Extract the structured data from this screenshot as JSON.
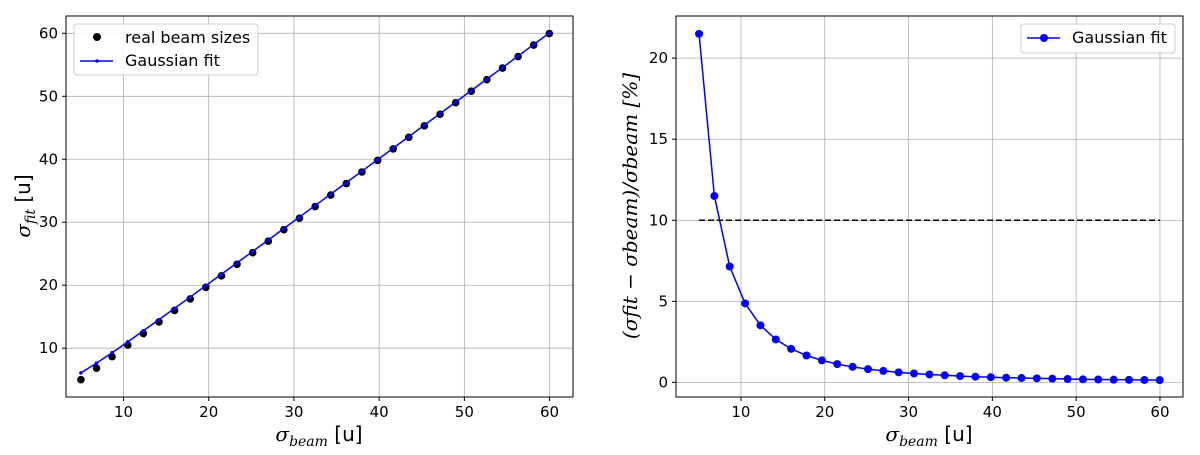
{
  "chart_data": [
    {
      "type": "scatter",
      "xlabel": {
        "symbol": "σ",
        "sub": "beam",
        "unit": " [u]"
      },
      "ylabel": {
        "symbol": "σ",
        "sub": "fit",
        "unit": " [u]"
      },
      "xlim": [
        3.25,
        62.75
      ],
      "ylim": [
        2.25,
        62.75
      ],
      "xticks": [
        10,
        20,
        30,
        40,
        50,
        60
      ],
      "yticks": [
        10,
        20,
        30,
        40,
        50,
        60
      ],
      "grid": true,
      "legend": {
        "position": "upper-left"
      },
      "series": [
        {
          "name": "real beam sizes",
          "style": "points",
          "color": "#000000",
          "x": [
            5.0,
            6.83,
            8.66,
            10.5,
            12.33,
            14.16,
            15.99,
            17.83,
            19.66,
            21.49,
            23.32,
            25.16,
            26.99,
            28.82,
            30.65,
            32.49,
            34.32,
            36.15,
            37.98,
            39.82,
            41.65,
            43.48,
            45.31,
            47.15,
            48.98,
            50.81,
            52.64,
            54.48,
            56.31,
            58.14,
            59.97
          ],
          "y": [
            5.0,
            6.83,
            8.66,
            10.5,
            12.33,
            14.16,
            15.99,
            17.83,
            19.66,
            21.49,
            23.32,
            25.16,
            26.99,
            28.82,
            30.65,
            32.49,
            34.32,
            36.15,
            37.98,
            39.82,
            41.65,
            43.48,
            45.31,
            47.15,
            48.98,
            50.81,
            52.64,
            54.48,
            56.31,
            58.14,
            59.97
          ]
        },
        {
          "name": "Gaussian fit",
          "style": "line-small-markers",
          "color": "#0000ff",
          "x": [
            5.0,
            6.83,
            8.66,
            10.5,
            12.33,
            14.16,
            15.99,
            17.83,
            19.66,
            21.49,
            23.32,
            25.16,
            26.99,
            28.82,
            30.65,
            32.49,
            34.32,
            36.15,
            37.98,
            39.82,
            41.65,
            43.48,
            45.31,
            47.15,
            48.98,
            50.81,
            52.64,
            54.48,
            56.31,
            58.14,
            59.97
          ],
          "y": [
            6.08,
            7.62,
            9.28,
            11.01,
            12.77,
            14.53,
            16.32,
            18.12,
            19.93,
            21.74,
            23.55,
            25.37,
            27.18,
            29.0,
            30.82,
            32.65,
            34.47,
            36.29,
            38.11,
            39.94,
            41.77,
            43.59,
            45.42,
            47.25,
            49.08,
            50.9,
            52.73,
            54.56,
            56.39,
            58.22,
            60.05
          ]
        }
      ]
    },
    {
      "type": "line",
      "xlabel": {
        "symbol": "σ",
        "sub": "beam",
        "unit": " [u]"
      },
      "ylabel": {
        "text": "(σfit − σbeam)/σbeam [%]"
      },
      "xlim": [
        2.25,
        62.75
      ],
      "ylim": [
        -0.9,
        22.6
      ],
      "xticks": [
        10,
        20,
        30,
        40,
        50,
        60
      ],
      "yticks": [
        0,
        5,
        10,
        15,
        20
      ],
      "grid": true,
      "legend": {
        "position": "upper-right"
      },
      "series": [
        {
          "name": "Gaussian fit",
          "style": "line-markers",
          "color": "#0000ff",
          "x": [
            5.0,
            6.83,
            8.66,
            10.5,
            12.33,
            14.16,
            15.99,
            17.83,
            19.66,
            21.49,
            23.32,
            25.16,
            26.99,
            28.82,
            30.65,
            32.49,
            34.32,
            36.15,
            37.98,
            39.82,
            41.65,
            43.48,
            45.31,
            47.15,
            48.98,
            50.81,
            52.64,
            54.48,
            56.31,
            58.14,
            59.97
          ],
          "y": [
            21.5,
            11.5,
            7.15,
            4.87,
            3.52,
            2.65,
            2.07,
            1.66,
            1.36,
            1.13,
            0.96,
            0.82,
            0.71,
            0.62,
            0.55,
            0.49,
            0.44,
            0.39,
            0.35,
            0.32,
            0.29,
            0.27,
            0.25,
            0.23,
            0.21,
            0.19,
            0.18,
            0.17,
            0.16,
            0.15,
            0.14
          ]
        },
        {
          "name": "",
          "style": "dashed",
          "color": "#000000",
          "x": [
            5.0,
            60.0
          ],
          "y": [
            10.0,
            10.0
          ]
        }
      ]
    }
  ]
}
